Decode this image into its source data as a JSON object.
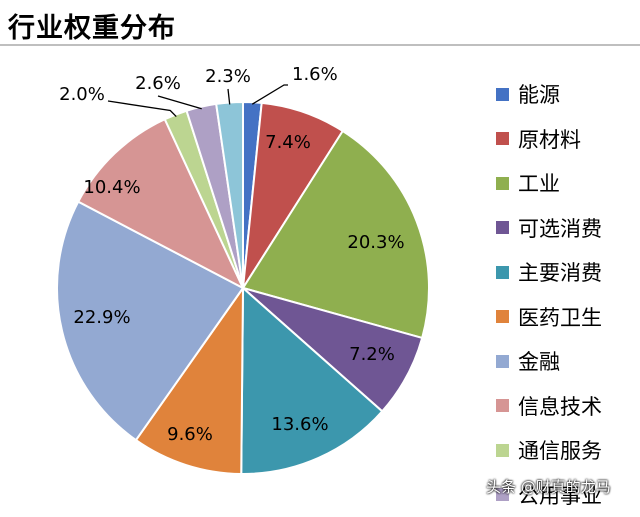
{
  "title": "行业权重分布",
  "watermark": "头条 @财真的龙马",
  "chart_data": {
    "type": "pie",
    "title": "行业权重分布",
    "legend_position": "right",
    "slices": [
      {
        "label": "能源",
        "value": 1.6,
        "display": "1.6%",
        "color": "#4472c4"
      },
      {
        "label": "原材料",
        "value": 7.4,
        "display": "7.4%",
        "color": "#c0504d"
      },
      {
        "label": "工业",
        "value": 20.3,
        "display": "20.3%",
        "color": "#8faf4f"
      },
      {
        "label": "可选消费",
        "value": 7.2,
        "display": "7.2%",
        "color": "#6f5694"
      },
      {
        "label": "主要消费",
        "value": 13.6,
        "display": "13.6%",
        "color": "#3c97ad"
      },
      {
        "label": "医药卫生",
        "value": 9.6,
        "display": "9.6%",
        "color": "#e0833b"
      },
      {
        "label": "金融",
        "value": 22.9,
        "display": "22.9%",
        "color": "#93a9d2"
      },
      {
        "label": "信息技术",
        "value": 10.4,
        "display": "10.4%",
        "color": "#d69594"
      },
      {
        "label": "通信服务",
        "value": 2.0,
        "display": "2.0%",
        "color": "#bcd591"
      },
      {
        "label": "公用事业",
        "value": 2.6,
        "display": "2.6%",
        "color": "#aea0c5"
      },
      {
        "label": "",
        "value": 2.3,
        "display": "2.3%",
        "color": "#8dc5d8"
      }
    ]
  }
}
